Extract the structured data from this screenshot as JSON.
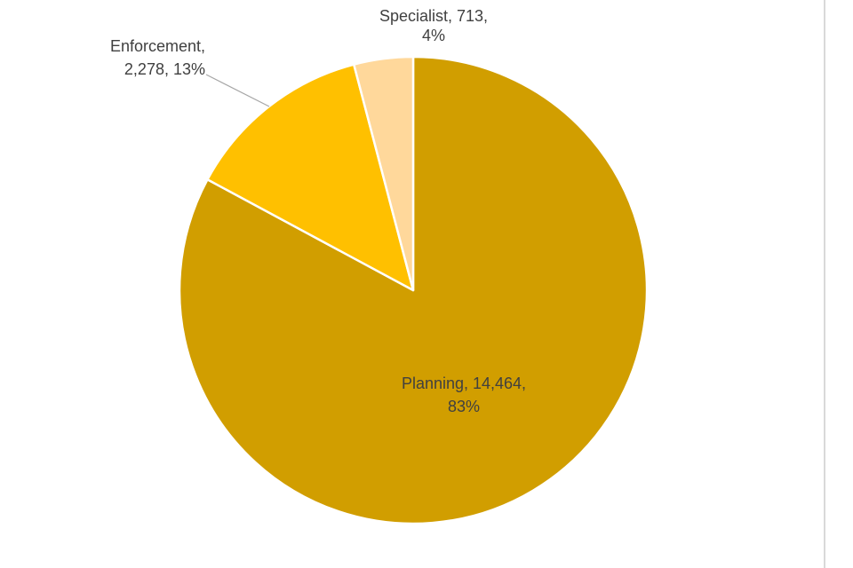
{
  "chart_data": {
    "type": "pie",
    "title": "",
    "start_angle_deg": 0,
    "direction": "clockwise",
    "slices": [
      {
        "name": "Planning",
        "value": 14464,
        "percent": "83%",
        "color": "#D19E00",
        "label_lines": [
          "Planning, 14,464,",
          "83%"
        ]
      },
      {
        "name": "Enforcement",
        "value": 2278,
        "percent": "13%",
        "color": "#FFC000",
        "label_lines": [
          "Enforcement,",
          "2,278, 13%"
        ]
      },
      {
        "name": "Specialist",
        "value": 713,
        "percent": "4%",
        "color": "#FFD89B",
        "label_lines": [
          "Specialist, 713,",
          "4%"
        ]
      }
    ],
    "legend": "none",
    "slice_border_color": "#ffffff",
    "leader_line_color": "#a6a6a6"
  }
}
